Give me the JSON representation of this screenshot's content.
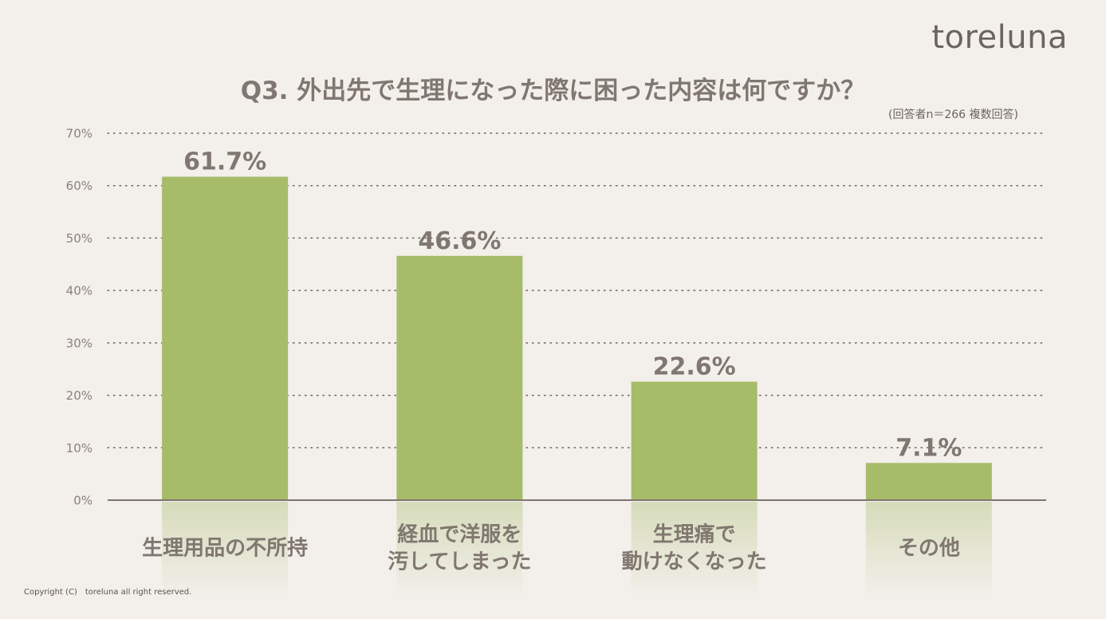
{
  "brand": "toreluna",
  "title": "Q3. 外出先で生理になった際に困った内容は何ですか？",
  "subtitle": "(回答者n＝266 複数回答)",
  "copyright": "Copyright (C)　toreluna all right reserved.",
  "colors": {
    "bar": "#a6bc68",
    "background": "#f3efeb",
    "text": "#807770",
    "grid": "#6b6561"
  },
  "chart_data": {
    "type": "bar",
    "categories": [
      [
        "生理用品の不所持"
      ],
      [
        "経血で洋服を",
        "汚してしまった"
      ],
      [
        "生理痛で",
        "動けなくなった"
      ],
      [
        "その他"
      ]
    ],
    "values": [
      61.7,
      46.6,
      22.6,
      7.1
    ],
    "value_labels": [
      "61.7%",
      "46.6%",
      "22.6%",
      "7.1%"
    ],
    "ylim": [
      0,
      70
    ],
    "yticks": [
      0,
      10,
      20,
      30,
      40,
      50,
      60,
      70
    ],
    "ytick_labels": [
      "0%",
      "10%",
      "20%",
      "30%",
      "40%",
      "50%",
      "60%",
      "70%"
    ],
    "grid": true,
    "grid_style": "dotted"
  }
}
